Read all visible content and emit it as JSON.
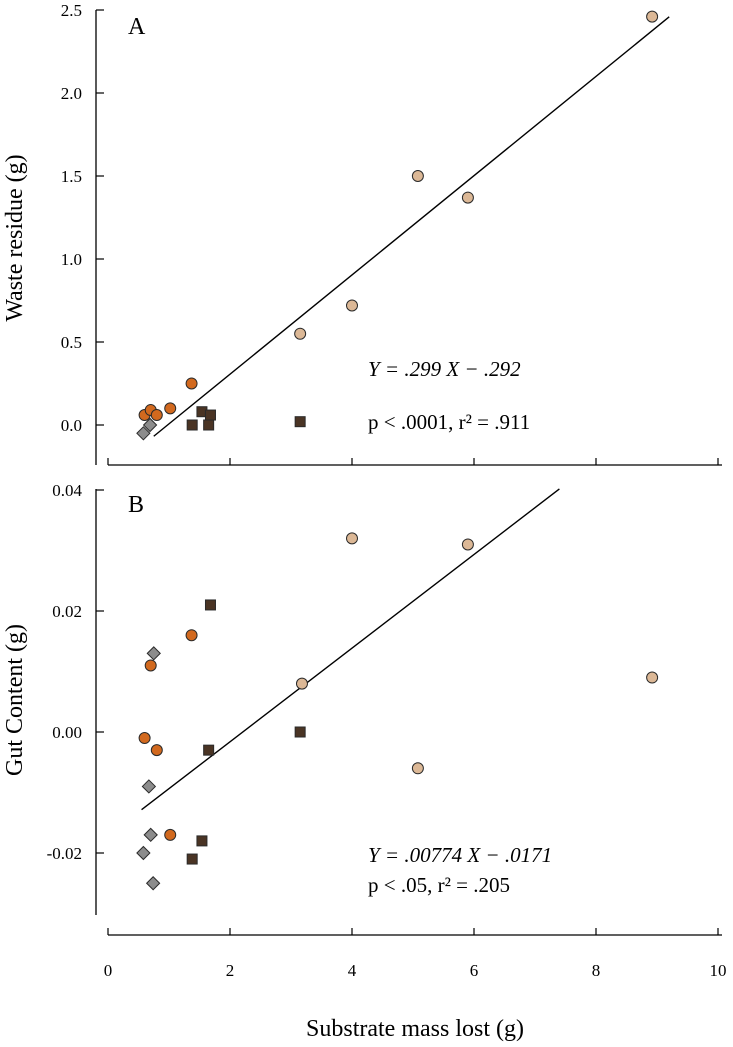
{
  "colors": {
    "tan": "#dcb896",
    "orange": "#d2691e",
    "dark_brown": "#4a3424",
    "gray": "#8c8c8c",
    "edge": "#2a2a2a"
  },
  "shared_xlabel": "Substrate mass lost (g)",
  "chart_data": [
    {
      "type": "scatter",
      "panel_label": "A",
      "title": "",
      "xlabel": "Substrate mass lost (g)",
      "ylabel": "Waste residue (g)",
      "xlim": [
        0,
        10
      ],
      "ylim": [
        -0.25,
        2.5
      ],
      "x_ticks": [
        "0",
        "2",
        "4",
        "6",
        "8",
        "10"
      ],
      "y_ticks": [
        "0.0",
        "0.5",
        "1.0",
        "1.5",
        "2.0",
        "2.5"
      ],
      "grid": false,
      "series": [
        {
          "marker": "circle",
          "color": "#dcb896",
          "points": [
            [
              3.15,
              0.55
            ],
            [
              4.0,
              0.72
            ],
            [
              5.08,
              1.5
            ],
            [
              5.9,
              1.37
            ],
            [
              8.92,
              2.46
            ]
          ]
        },
        {
          "marker": "circle",
          "color": "#d2691e",
          "points": [
            [
              0.6,
              0.06
            ],
            [
              0.7,
              0.09
            ],
            [
              0.8,
              0.06
            ],
            [
              1.02,
              0.1
            ],
            [
              1.37,
              0.25
            ]
          ]
        },
        {
          "marker": "square",
          "color": "#4a3424",
          "points": [
            [
              1.38,
              0.0
            ],
            [
              1.54,
              0.08
            ],
            [
              1.65,
              0.0
            ],
            [
              1.68,
              0.06
            ],
            [
              3.15,
              0.02
            ]
          ]
        },
        {
          "marker": "diamond",
          "color": "#8c8c8c",
          "points": [
            [
              0.58,
              -0.05
            ],
            [
              0.69,
              0.0
            ]
          ]
        }
      ],
      "fit": {
        "x": [
          0.75,
          9.2
        ],
        "slope": 0.299,
        "intercept": -0.292
      },
      "annotations": [
        "Y = .299 X − .292",
        "p < .0001, r² = .911"
      ]
    },
    {
      "type": "scatter",
      "panel_label": "B",
      "title": "",
      "xlabel": "Substrate mass lost (g)",
      "ylabel": "Gut Content (g)",
      "xlim": [
        0,
        10
      ],
      "ylim": [
        -0.03,
        0.04
      ],
      "x_ticks": [
        "0",
        "2",
        "4",
        "6",
        "8",
        "10"
      ],
      "y_ticks": [
        "-0.02",
        "0.00",
        "0.02",
        "0.04"
      ],
      "grid": false,
      "series": [
        {
          "marker": "circle",
          "color": "#dcb896",
          "points": [
            [
              3.18,
              0.008
            ],
            [
              4.0,
              0.032
            ],
            [
              5.9,
              0.031
            ],
            [
              5.08,
              -0.006
            ],
            [
              8.92,
              0.009
            ]
          ]
        },
        {
          "marker": "circle",
          "color": "#d2691e",
          "points": [
            [
              0.6,
              -0.001
            ],
            [
              0.7,
              0.011
            ],
            [
              0.8,
              -0.003
            ],
            [
              1.02,
              -0.017
            ],
            [
              1.37,
              0.016
            ]
          ]
        },
        {
          "marker": "square",
          "color": "#4a3424",
          "points": [
            [
              1.38,
              -0.021
            ],
            [
              1.54,
              -0.018
            ],
            [
              1.65,
              -0.003
            ],
            [
              1.68,
              0.021
            ],
            [
              3.15,
              0.0
            ]
          ]
        },
        {
          "marker": "diamond",
          "color": "#8c8c8c",
          "points": [
            [
              0.58,
              -0.02
            ],
            [
              0.67,
              -0.009
            ],
            [
              0.7,
              -0.017
            ],
            [
              0.75,
              0.013
            ],
            [
              0.74,
              -0.025
            ]
          ]
        }
      ],
      "fit": {
        "x": [
          0.55,
          7.4
        ],
        "slope": 0.00774,
        "intercept": -0.0171
      },
      "annotations": [
        "Y = .00774 X − .0171",
        "p < .05, r² = .205"
      ]
    }
  ]
}
